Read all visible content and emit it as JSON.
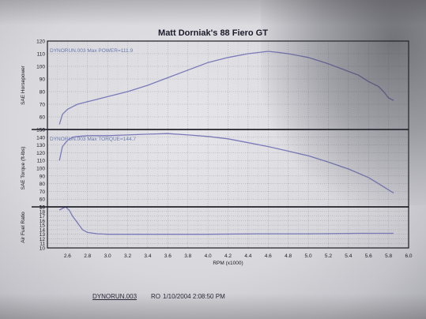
{
  "chart_data": [
    {
      "type": "line",
      "title": "Matt Dorniak's 88 Fiero GT",
      "ylabel": "SAE Horsepower",
      "annotation": "DYNORUN.003  Max POWER=111.9",
      "ylim": [
        50,
        120
      ],
      "yticks": [
        "50",
        "60",
        "70",
        "80",
        "90",
        "100",
        "110",
        "120"
      ],
      "series": [
        {
          "x": [
            2.52,
            2.55,
            2.6,
            2.65,
            2.7,
            2.8,
            2.9,
            3.0,
            3.2,
            3.4,
            3.6,
            3.8,
            4.0,
            4.2,
            4.4,
            4.6,
            4.7,
            4.8,
            5.0,
            5.2,
            5.4,
            5.5,
            5.6,
            5.7,
            5.75,
            5.8,
            5.85
          ],
          "y": [
            54,
            62,
            66,
            68,
            70,
            72,
            74,
            76,
            80,
            85,
            91,
            97,
            103,
            107,
            110,
            111.9,
            111,
            110,
            107,
            102,
            96,
            93,
            88,
            84,
            80,
            75,
            73
          ]
        }
      ]
    },
    {
      "type": "line",
      "ylabel": "SAE Torque (ft-lbs)",
      "annotation": "DYNORUN.003  Max TORQUE=144.7",
      "ylim": [
        50,
        150
      ],
      "yticks": [
        "50",
        "60",
        "70",
        "80",
        "90",
        "100",
        "110",
        "120",
        "130",
        "140",
        "150"
      ],
      "series": [
        {
          "x": [
            2.52,
            2.55,
            2.6,
            2.65,
            2.7,
            2.8,
            3.0,
            3.2,
            3.4,
            3.6,
            3.8,
            4.0,
            4.2,
            4.4,
            4.6,
            4.8,
            5.0,
            5.2,
            5.4,
            5.6,
            5.7,
            5.8,
            5.85
          ],
          "y": [
            110,
            128,
            136,
            140,
            141,
            142,
            142,
            143,
            144,
            144.7,
            143,
            141,
            138,
            133,
            128,
            122,
            116,
            108,
            99,
            88,
            80,
            72,
            68
          ]
        }
      ]
    },
    {
      "type": "line",
      "ylabel": "Air Fuel Ratio",
      "ylim": [
        10,
        19
      ],
      "yticks": [
        "10",
        "11",
        "12",
        "13",
        "14",
        "15",
        "16",
        "17",
        "18",
        "19"
      ],
      "xlabel": "RPM (x1000)",
      "xlim": [
        2.4,
        6.0
      ],
      "xticks": [
        "2.6",
        "2.8",
        "3.0",
        "3.2",
        "3.4",
        "3.6",
        "3.8",
        "4.0",
        "4.2",
        "4.4",
        "4.6",
        "4.8",
        "5.0",
        "5.2",
        "5.4",
        "5.6",
        "5.8",
        "6.0"
      ],
      "series": [
        {
          "x": [
            2.52,
            2.58,
            2.62,
            2.65,
            2.7,
            2.75,
            2.8,
            2.9,
            3.0,
            3.5,
            4.0,
            4.5,
            5.0,
            5.5,
            5.85
          ],
          "y": [
            18.3,
            19,
            18.2,
            17,
            15.5,
            14,
            13.4,
            13.1,
            13.0,
            13.0,
            13.0,
            13.1,
            13.1,
            13.2,
            13.2
          ]
        }
      ]
    }
  ],
  "footer": {
    "run": "DYNORUN.003",
    "code": "RO",
    "datetime": "1/10/2004 2:08:50 PM"
  },
  "colors": {
    "curve": "#7a7ab8",
    "annotation": "#6a78b0",
    "axis": "#1a1a22",
    "grid": "#9a9aa4"
  }
}
